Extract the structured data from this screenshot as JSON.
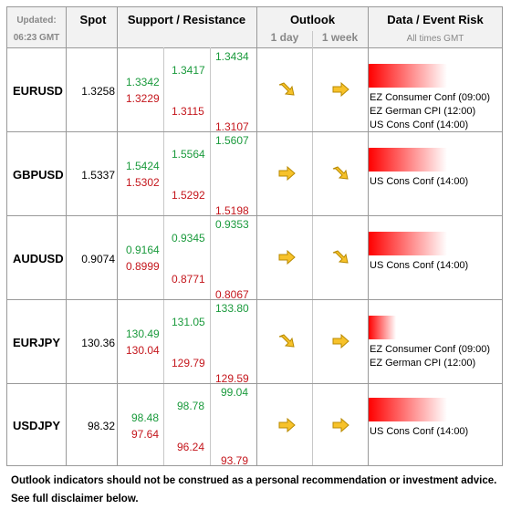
{
  "header": {
    "updated_label": "Updated:",
    "updated_time": "06:23 GMT",
    "spot": "Spot",
    "support_resistance": "Support / Resistance",
    "outlook": "Outlook",
    "outlook_1day": "1 day",
    "outlook_1week": "1 week",
    "data_event_risk": "Data / Event Risk",
    "all_times": "All times GMT"
  },
  "rows": [
    {
      "pair": "EURUSD",
      "spot": "1.3258",
      "s1": "1.3342",
      "s2": "1.3229",
      "r1": "1.3417",
      "r2": "1.3115",
      "x1": "1.3434",
      "x2": "1.3107",
      "day": "down-right",
      "week": "right",
      "risk": 0.65,
      "events": [
        "EZ Consumer Conf (09:00)",
        "EZ German CPI (12:00)",
        "US Cons Conf (14:00)"
      ]
    },
    {
      "pair": "GBPUSD",
      "spot": "1.5337",
      "s1": "1.5424",
      "s2": "1.5302",
      "r1": "1.5564",
      "r2": "1.5292",
      "x1": "1.5607",
      "x2": "1.5198",
      "day": "right",
      "week": "down-right",
      "risk": 0.62,
      "events": [
        "US Cons Conf (14:00)"
      ]
    },
    {
      "pair": "AUDUSD",
      "spot": "0.9074",
      "s1": "0.9164",
      "s2": "0.8999",
      "r1": "0.9345",
      "r2": "0.8771",
      "x1": "0.9353",
      "x2": "0.8067",
      "day": "right",
      "week": "down-right",
      "risk": 0.62,
      "events": [
        "US Cons Conf (14:00)"
      ]
    },
    {
      "pair": "EURJPY",
      "spot": "130.36",
      "s1": "130.49",
      "s2": "130.04",
      "r1": "131.05",
      "r2": "129.79",
      "x1": "133.80",
      "x2": "129.59",
      "day": "down-right",
      "week": "right",
      "risk": 0.25,
      "events": [
        "EZ Consumer Conf (09:00)",
        "EZ German CPI (12:00)"
      ]
    },
    {
      "pair": "USDJPY",
      "spot": "98.32",
      "s1": "98.48",
      "s2": "97.64",
      "r1": "98.78",
      "r2": "96.24",
      "x1": "99.04",
      "x2": "93.79",
      "day": "right",
      "week": "right",
      "risk": 0.62,
      "events": [
        "US Cons Conf (14:00)"
      ]
    }
  ],
  "footer": {
    "line1": "Outlook indicators should not be construed as a personal recommendation or investment advice.",
    "line2": "See full disclaimer below."
  },
  "colors": {
    "support": "#1a9a3c",
    "resistance": "#c4161c",
    "arrow": "#f7c22a",
    "risk": "#ff0000"
  }
}
